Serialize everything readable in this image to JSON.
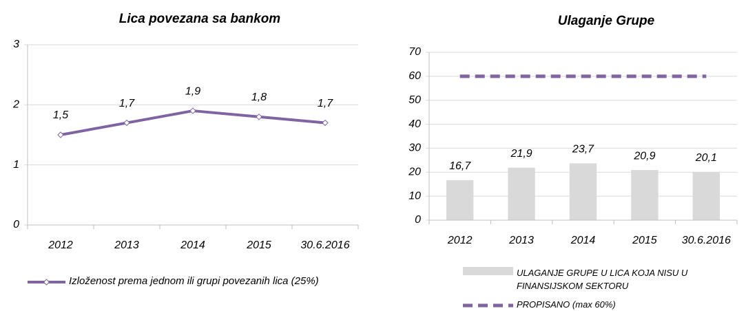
{
  "chart_data": [
    {
      "type": "line",
      "title": "Lica povezana sa bankom",
      "categories": [
        "2012",
        "2013",
        "2014",
        "2015",
        "30.6.2016"
      ],
      "series": [
        {
          "name": "Izloženost prema jednom ili grupi povezanih lica (25%)",
          "color": "#8064a2",
          "values": [
            1.5,
            1.7,
            1.9,
            1.8,
            1.7
          ],
          "value_labels": [
            "1,5",
            "1,7",
            "1,9",
            "1,8",
            "1,7"
          ]
        }
      ],
      "ylim": [
        0,
        3
      ],
      "yticks": [
        0,
        1,
        2,
        3
      ],
      "grid": true
    },
    {
      "type": "bar",
      "title": "Ulaganje Grupe",
      "categories": [
        "2012",
        "2013",
        "2014",
        "2015",
        "30.6.2016"
      ],
      "series": [
        {
          "name": "ULAGANJE GRUPE U LICA KOJA NISU U FINANSIJSKOM SEKTORU",
          "color": "#d9d9d9",
          "values": [
            16.7,
            21.9,
            23.7,
            20.9,
            20.1
          ],
          "value_labels": [
            "16,7",
            "21,9",
            "23,7",
            "20,9",
            "20,1"
          ]
        },
        {
          "name": "PROPISANO (max 60%)",
          "color": "#8064a2",
          "type": "line",
          "dashed": true,
          "values": [
            60,
            60,
            60,
            60,
            60
          ]
        }
      ],
      "ylim": [
        0,
        70
      ],
      "yticks": [
        0,
        10,
        20,
        30,
        40,
        50,
        60,
        70
      ],
      "grid": true
    }
  ]
}
